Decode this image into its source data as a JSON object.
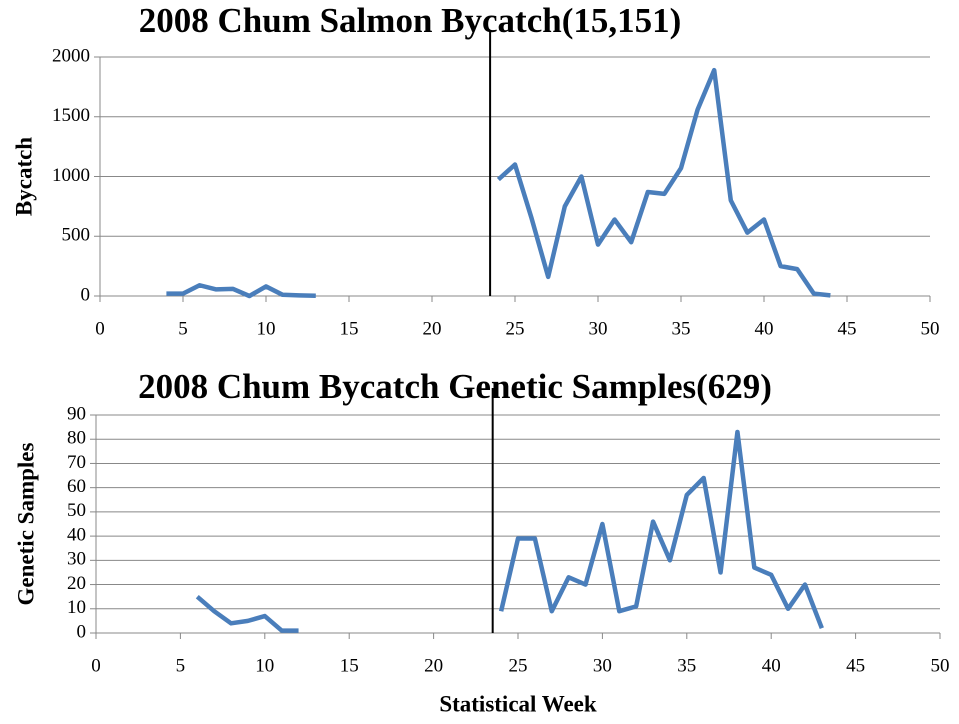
{
  "chart_data": [
    {
      "type": "line",
      "title": "2008 Chum Salmon Bycatch(15,151)",
      "ylabel": "Bycatch",
      "x": [
        4,
        5,
        6,
        7,
        8,
        9,
        10,
        11,
        12,
        13,
        14,
        15,
        16,
        17,
        18,
        19,
        20,
        21,
        22,
        23,
        24,
        25,
        26,
        27,
        28,
        29,
        30,
        31,
        32,
        33,
        34,
        35,
        36,
        37,
        38,
        39,
        40,
        41,
        42,
        43,
        44
      ],
      "series": [
        {
          "color": "#4a7ebb",
          "values": [
            20,
            20,
            90,
            55,
            60,
            0,
            80,
            10,
            5,
            2,
            null,
            null,
            null,
            null,
            null,
            null,
            null,
            null,
            null,
            null,
            975,
            1100,
            650,
            160,
            750,
            1000,
            430,
            640,
            450,
            870,
            855,
            1070,
            1560,
            1890,
            800,
            530,
            640,
            250,
            225,
            20,
            5
          ]
        }
      ],
      "xlim": [
        0,
        50
      ],
      "xticks": [
        0,
        5,
        10,
        15,
        20,
        25,
        30,
        35,
        40,
        45,
        50
      ],
      "ylim": [
        0,
        2000
      ],
      "yticks": [
        0,
        500,
        1000,
        1500,
        2000
      ],
      "grid": true,
      "vline": 23.5
    },
    {
      "type": "line",
      "title": "2008 Chum Bycatch Genetic Samples(629)",
      "ylabel": "Genetic Samples",
      "xlabel": "Statistical Week",
      "x": [
        6,
        7,
        8,
        9,
        10,
        11,
        12,
        13,
        14,
        15,
        16,
        17,
        18,
        19,
        20,
        21,
        22,
        23,
        24,
        25,
        26,
        27,
        28,
        29,
        30,
        31,
        32,
        33,
        34,
        35,
        36,
        37,
        38,
        39,
        40,
        41,
        42,
        43
      ],
      "series": [
        {
          "color": "#4a7ebb",
          "values": [
            15,
            9,
            4,
            5,
            7,
            1,
            1,
            null,
            null,
            null,
            null,
            null,
            null,
            null,
            null,
            null,
            null,
            null,
            9,
            39,
            39,
            9,
            23,
            20,
            45,
            9,
            11,
            46,
            30,
            57,
            64,
            25,
            83,
            27,
            24,
            10,
            20,
            2
          ]
        }
      ],
      "xlim": [
        0,
        50
      ],
      "xticks": [
        0,
        5,
        10,
        15,
        20,
        25,
        30,
        35,
        40,
        45,
        50
      ],
      "ylim": [
        0,
        90
      ],
      "yticks": [
        0,
        10,
        20,
        30,
        40,
        50,
        60,
        70,
        80,
        90
      ],
      "grid": true,
      "vline": 23.5
    }
  ]
}
